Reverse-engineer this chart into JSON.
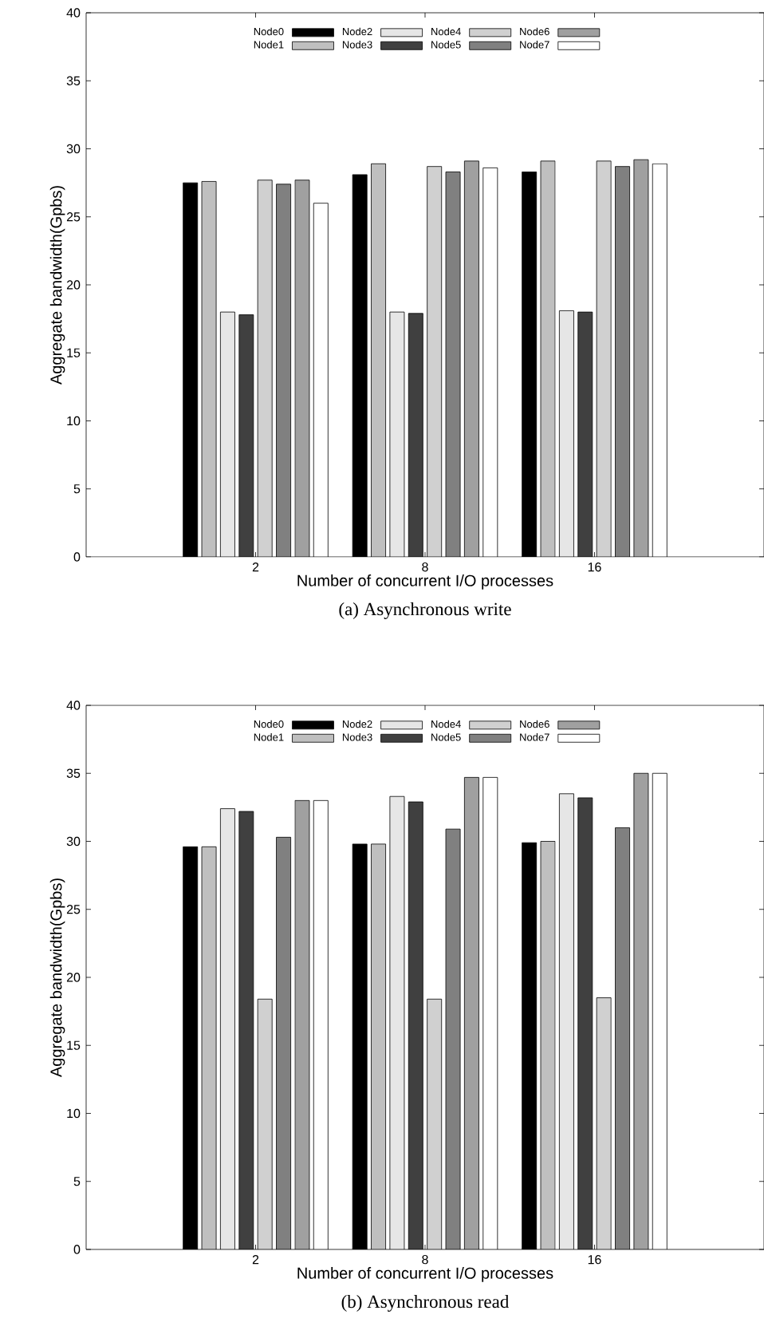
{
  "chart_data": [
    {
      "type": "bar",
      "title": "(a)  Asynchronous write",
      "xlabel": "Number of concurrent I/O processes",
      "ylabel": "Aggregate bandwidth(Gpbs)",
      "categories": [
        "2",
        "8",
        "16"
      ],
      "ylim": [
        0,
        40
      ],
      "yticks": [
        0,
        5,
        10,
        15,
        20,
        25,
        30,
        35,
        40
      ],
      "legend": "top",
      "series": [
        {
          "name": "Node0",
          "color": "#000000",
          "values": [
            27.5,
            28.1,
            28.3
          ]
        },
        {
          "name": "Node1",
          "color": "#bfbfbf",
          "values": [
            27.6,
            28.9,
            29.1
          ]
        },
        {
          "name": "Node2",
          "color": "#e6e6e6",
          "values": [
            18.0,
            18.0,
            18.1
          ]
        },
        {
          "name": "Node3",
          "color": "#404040",
          "values": [
            17.8,
            17.9,
            18.0
          ]
        },
        {
          "name": "Node4",
          "color": "#d0d0d0",
          "values": [
            27.7,
            28.7,
            29.1
          ]
        },
        {
          "name": "Node5",
          "color": "#808080",
          "values": [
            27.4,
            28.3,
            28.7
          ]
        },
        {
          "name": "Node6",
          "color": "#a0a0a0",
          "values": [
            27.7,
            29.1,
            29.2
          ]
        },
        {
          "name": "Node7",
          "color": "#ffffff",
          "values": [
            26.0,
            28.6,
            28.9
          ]
        }
      ]
    },
    {
      "type": "bar",
      "title": "(b)  Asynchronous read",
      "xlabel": "Number of concurrent I/O processes",
      "ylabel": "Aggregate bandwidth(Gpbs)",
      "categories": [
        "2",
        "8",
        "16"
      ],
      "ylim": [
        0,
        40
      ],
      "yticks": [
        0,
        5,
        10,
        15,
        20,
        25,
        30,
        35,
        40
      ],
      "legend": "top",
      "series": [
        {
          "name": "Node0",
          "color": "#000000",
          "values": [
            29.6,
            29.8,
            29.9
          ]
        },
        {
          "name": "Node1",
          "color": "#bfbfbf",
          "values": [
            29.6,
            29.8,
            30.0
          ]
        },
        {
          "name": "Node2",
          "color": "#e6e6e6",
          "values": [
            32.4,
            33.3,
            33.5
          ]
        },
        {
          "name": "Node3",
          "color": "#404040",
          "values": [
            32.2,
            32.9,
            33.2
          ]
        },
        {
          "name": "Node4",
          "color": "#d0d0d0",
          "values": [
            18.4,
            18.4,
            18.5
          ]
        },
        {
          "name": "Node5",
          "color": "#808080",
          "values": [
            30.3,
            30.9,
            31.0
          ]
        },
        {
          "name": "Node6",
          "color": "#a0a0a0",
          "values": [
            33.0,
            34.7,
            35.0
          ]
        },
        {
          "name": "Node7",
          "color": "#ffffff",
          "values": [
            33.0,
            34.7,
            35.0
          ]
        }
      ]
    }
  ]
}
